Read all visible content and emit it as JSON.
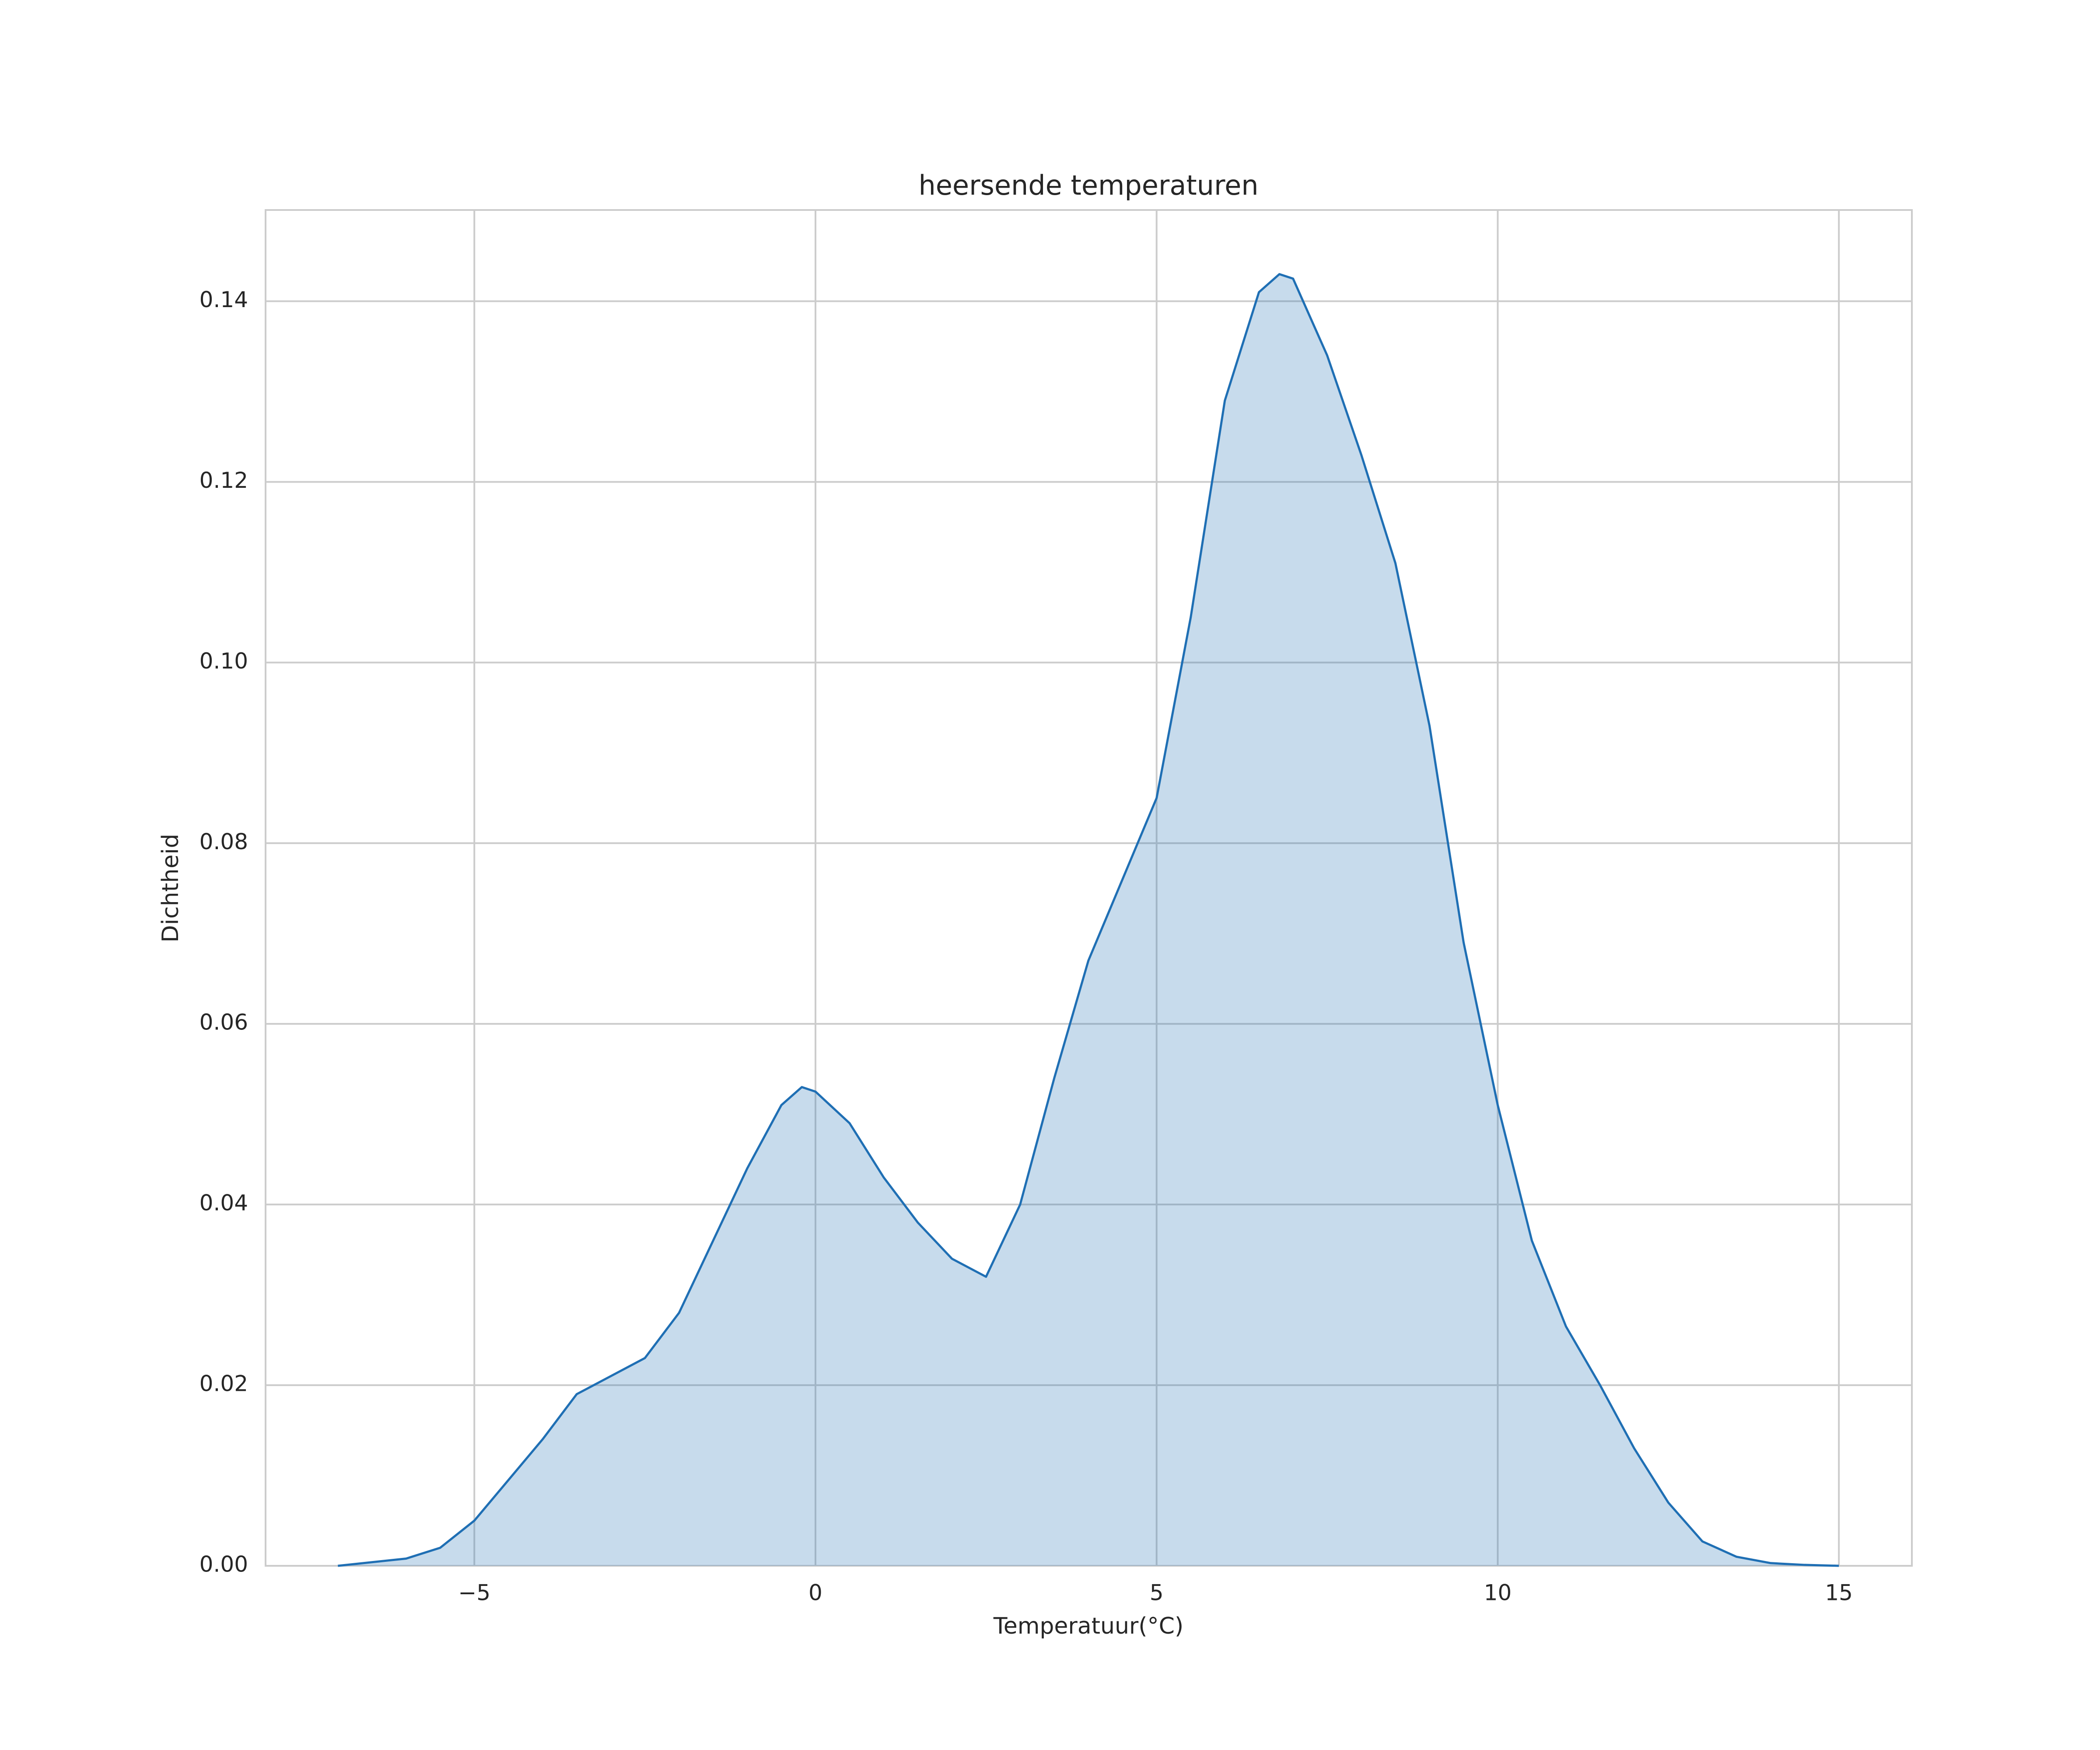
{
  "chart_data": {
    "type": "kde",
    "title": "heersende temperaturen",
    "x_label": "Temperatuur(°C)",
    "y_label": "Dichtheid",
    "x": [
      -7,
      -6,
      -5.5,
      -5,
      -4.5,
      -4,
      -3.5,
      -3,
      -2.5,
      -2,
      -1.5,
      -1,
      -0.5,
      -0.2,
      0,
      0.5,
      1,
      1.5,
      2,
      2.5,
      3,
      3.5,
      4,
      4.5,
      5,
      5.5,
      6,
      6.5,
      6.8,
      7,
      7.5,
      8,
      8.5,
      9,
      9.5,
      10,
      10.5,
      11,
      11.5,
      12,
      12.5,
      13,
      13.5,
      14,
      14.5,
      15
    ],
    "values": [
      0,
      0.0008,
      0.002,
      0.005,
      0.0095,
      0.014,
      0.019,
      0.021,
      0.023,
      0.028,
      0.036,
      0.044,
      0.051,
      0.053,
      0.0525,
      0.049,
      0.043,
      0.038,
      0.034,
      0.032,
      0.04,
      0.054,
      0.067,
      0.076,
      0.085,
      0.105,
      0.129,
      0.141,
      0.143,
      0.1425,
      0.134,
      0.123,
      0.111,
      0.093,
      0.069,
      0.051,
      0.036,
      0.0265,
      0.02,
      0.013,
      0.007,
      0.0027,
      0.001,
      0.0003,
      0.0001,
      0
    ],
    "color": "#1f6fb4",
    "xlim": [
      -8.06,
      16.07
    ],
    "ylim": [
      0,
      0.1501
    ],
    "xticks": [
      {
        "value": -5,
        "label": "−5"
      },
      0,
      5,
      10,
      15
    ],
    "yticks": [
      {
        "value": 0,
        "label": "0.00"
      },
      {
        "value": 0.02,
        "label": "0.02"
      },
      {
        "value": 0.04,
        "label": "0.04"
      },
      {
        "value": 0.06,
        "label": "0.06"
      },
      {
        "value": 0.08,
        "label": "0.08"
      },
      {
        "value": 0.1,
        "label": "0.10"
      },
      {
        "value": 0.12,
        "label": "0.12"
      },
      {
        "value": 0.14,
        "label": "0.14"
      }
    ],
    "grid": true
  }
}
